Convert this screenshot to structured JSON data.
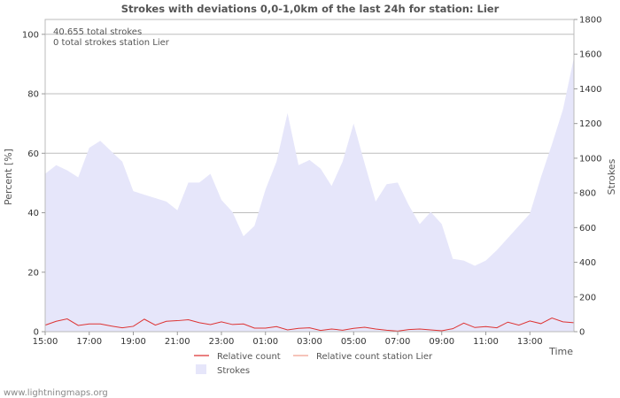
{
  "chart_data": {
    "type": "area",
    "title": "Strokes with deviations 0,0-1,0km of the last 24h for station: Lier",
    "ylabel_left": "Percent   [%]",
    "ylabel_right": "Strokes",
    "xlabel": "Time",
    "ylim_left": [
      0,
      105
    ],
    "ylim_right": [
      0,
      1800
    ],
    "xlim": [
      0,
      24
    ],
    "yticks_left": [
      0,
      20,
      40,
      60,
      80,
      100
    ],
    "yticks_right": [
      0,
      200,
      400,
      600,
      800,
      1000,
      1200,
      1400,
      1600,
      1800
    ],
    "xticks": [
      {
        "x": 0,
        "label": "15:00"
      },
      {
        "x": 2,
        "label": "17:00"
      },
      {
        "x": 4,
        "label": "19:00"
      },
      {
        "x": 6,
        "label": "21:00"
      },
      {
        "x": 8,
        "label": "23:00"
      },
      {
        "x": 10,
        "label": "01:00"
      },
      {
        "x": 12,
        "label": "03:00"
      },
      {
        "x": 14,
        "label": "05:00"
      },
      {
        "x": 16,
        "label": "07:00"
      },
      {
        "x": 18,
        "label": "09:00"
      },
      {
        "x": 20,
        "label": "11:00"
      },
      {
        "x": 22,
        "label": "13:00"
      }
    ],
    "annotations": [
      "40.655 total strokes",
      "0 total strokes station Lier"
    ],
    "legend": [
      {
        "name": "Relative count",
        "color": "#dd3333",
        "kind": "line"
      },
      {
        "name": "Relative count station Lier",
        "color": "#f0a090",
        "kind": "line"
      },
      {
        "name": "Strokes",
        "color": "#e6e6fa",
        "kind": "area"
      }
    ],
    "series": [
      {
        "name": "Strokes",
        "axis": "right",
        "x": [
          0,
          0.5,
          1,
          1.5,
          2,
          2.5,
          3,
          3.5,
          4,
          4.5,
          5,
          5.5,
          6,
          6.5,
          7,
          7.5,
          8,
          8.5,
          9,
          9.5,
          10,
          10.5,
          11,
          11.5,
          12,
          12.5,
          13,
          13.5,
          14,
          14.5,
          15,
          15.5,
          16,
          16.5,
          17,
          17.5,
          18,
          18.5,
          19,
          19.5,
          20,
          20.5,
          21,
          21.5,
          22,
          22.5,
          23,
          23.5,
          24
        ],
        "values": [
          910,
          960,
          930,
          890,
          1060,
          1100,
          1040,
          980,
          810,
          790,
          770,
          750,
          700,
          860,
          860,
          910,
          760,
          690,
          550,
          610,
          820,
          980,
          1260,
          960,
          990,
          940,
          840,
          980,
          1200,
          970,
          750,
          850,
          860,
          730,
          620,
          690,
          620,
          420,
          410,
          380,
          410,
          470,
          540,
          610,
          680,
          890,
          1080,
          1280,
          1580
        ]
      },
      {
        "name": "Relative count",
        "axis": "left",
        "x": [
          0,
          0.5,
          1,
          1.5,
          2,
          2.5,
          3,
          3.5,
          4,
          4.5,
          5,
          5.5,
          6,
          6.5,
          7,
          7.5,
          8,
          8.5,
          9,
          9.5,
          10,
          10.5,
          11,
          11.5,
          12,
          12.5,
          13,
          13.5,
          14,
          14.5,
          15,
          15.5,
          16,
          16.5,
          17,
          17.5,
          18,
          18.5,
          19,
          19.5,
          20,
          20.5,
          21,
          21.5,
          22,
          22.5,
          23,
          23.5,
          24
        ],
        "values": [
          2.2,
          3.5,
          4.3,
          2.1,
          2.6,
          2.6,
          1.9,
          1.3,
          1.8,
          4.2,
          2.2,
          3.5,
          3.7,
          4.0,
          3.0,
          2.4,
          3.3,
          2.4,
          2.6,
          1.2,
          1.2,
          1.7,
          0.6,
          1.1,
          1.3,
          0.4,
          0.9,
          0.5,
          1.1,
          1.5,
          0.9,
          0.5,
          0.2,
          0.7,
          0.9,
          0.6,
          0.3,
          1.0,
          2.9,
          1.4,
          1.7,
          1.3,
          3.2,
          2.2,
          3.6,
          2.7,
          4.6,
          3.3,
          3.0
        ]
      },
      {
        "name": "Relative count station Lier",
        "axis": "left",
        "x": [
          0,
          24
        ],
        "values": [
          0,
          0
        ]
      }
    ]
  },
  "footer": {
    "credit": "www.lightningmaps.org"
  }
}
